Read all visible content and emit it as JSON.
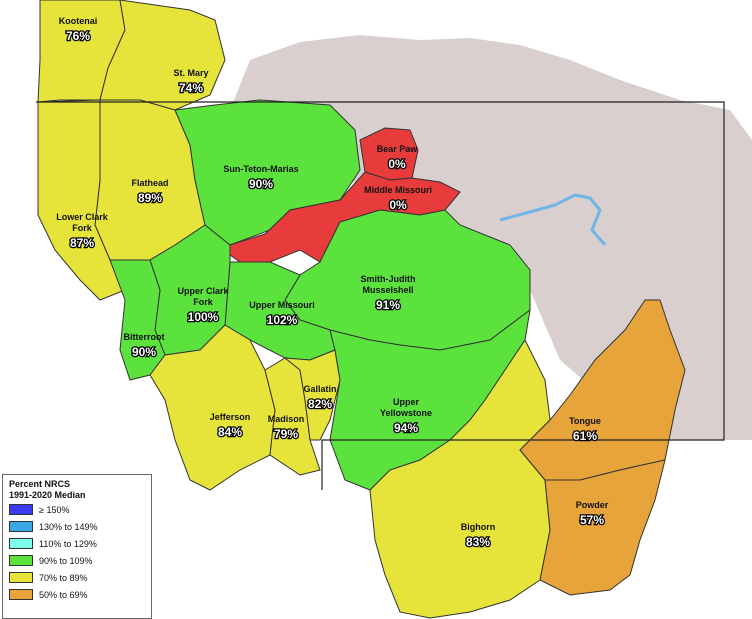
{
  "basins": [
    {
      "name": "Kootenai",
      "percent": "76%",
      "class": "70-89"
    },
    {
      "name": "St. Mary",
      "percent": "74%",
      "class": "70-89"
    },
    {
      "name": "Flathead",
      "percent": "89%",
      "class": "70-89"
    },
    {
      "name": "Lower Clark Fork",
      "name_lines": [
        "Lower Clark",
        "Fork"
      ],
      "percent": "87%",
      "class": "70-89"
    },
    {
      "name": "Sun-Teton-Marias",
      "percent": "90%",
      "class": "90-109"
    },
    {
      "name": "Bear Paw",
      "percent": "0%",
      "class": "lt50"
    },
    {
      "name": "Middle Missouri",
      "percent": "0%",
      "class": "lt50"
    },
    {
      "name": "Smith-Judith Musselshell",
      "name_lines": [
        "Smith-Judith",
        "Musselshell"
      ],
      "percent": "91%",
      "class": "90-109"
    },
    {
      "name": "Upper Clark Fork",
      "name_lines": [
        "Upper Clark",
        "Fork"
      ],
      "percent": "100%",
      "class": "90-109"
    },
    {
      "name": "Upper Missouri",
      "percent": "102%",
      "class": "90-109"
    },
    {
      "name": "Bitterroot",
      "percent": "90%",
      "class": "90-109"
    },
    {
      "name": "Gallatin",
      "percent": "82%",
      "class": "70-89"
    },
    {
      "name": "Jefferson",
      "percent": "84%",
      "class": "70-89"
    },
    {
      "name": "Madison",
      "percent": "79%",
      "class": "70-89"
    },
    {
      "name": "Upper Yellowstone",
      "name_lines": [
        "Upper",
        "Yellowstone"
      ],
      "percent": "94%",
      "class": "90-109"
    },
    {
      "name": "Tongue",
      "percent": "61%",
      "class": "50-69"
    },
    {
      "name": "Powder",
      "percent": "57%",
      "class": "50-69"
    },
    {
      "name": "Bighorn",
      "percent": "83%",
      "class": "70-89"
    }
  ],
  "legend": {
    "title_line1": "Percent NRCS",
    "title_line2": "1991-2020 Median",
    "items": [
      {
        "label": "≥ 150%",
        "color": "#3a3af0"
      },
      {
        "label": "130% to 149%",
        "color": "#3aa6e6"
      },
      {
        "label": "110% to 129%",
        "color": "#7fffe8"
      },
      {
        "label": "90% to 109%",
        "color": "#5ce23c"
      },
      {
        "label": "70% to 89%",
        "color": "#e6e43a"
      },
      {
        "label": "50% to 69%",
        "color": "#e6a43a"
      }
    ]
  },
  "colors": {
    "lt50": "#e83c3c",
    "50-69": "#e6a43a",
    "70-89": "#e6e43a",
    "90-109": "#5ce23c",
    "terrain": "#d9cfcf",
    "water": "#6fb6e6",
    "border": "#333333"
  }
}
